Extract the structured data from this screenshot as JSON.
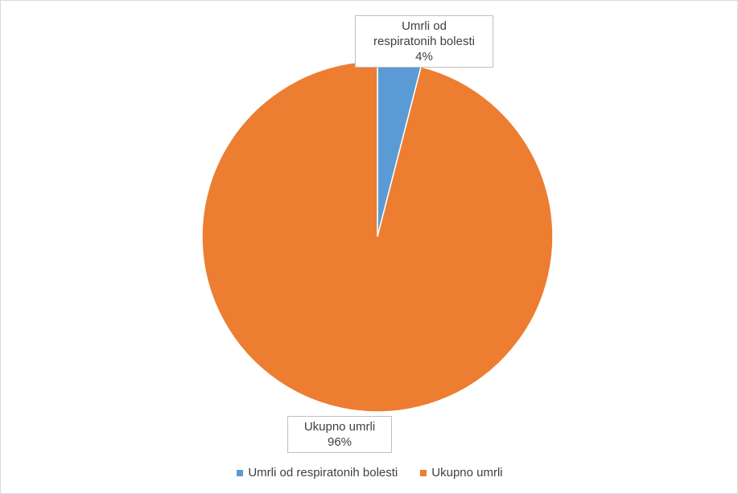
{
  "chart_data": {
    "type": "pie",
    "title": "",
    "slices": [
      {
        "name": "Umrli od respiratonih bolesti",
        "value": 4,
        "label_line1": "Umrli od",
        "label_line2": "respiratonih bolesti",
        "percent_label": "4%",
        "color": "#5b9bd5"
      },
      {
        "name": "Ukupno umrli",
        "value": 96,
        "label_line1": "Ukupno umrli",
        "percent_label": "96%",
        "color": "#ed7d31"
      }
    ],
    "legend": {
      "position": "bottom",
      "items": [
        "Umrli od respiratonih bolesti",
        "Ukupno umrli"
      ]
    }
  }
}
